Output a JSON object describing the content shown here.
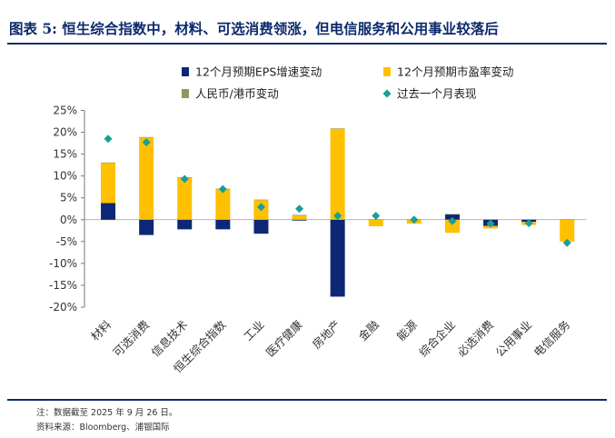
{
  "header": {
    "title": "图表 5: 恒生综合指数中，材料、可选消费领涨，但电信服务和公用事业较落后"
  },
  "footer": {
    "note": "注：数据截至 2025 年 9 月 26 日。",
    "source": "资料来源：Bloomberg、浦银国际"
  },
  "colors": {
    "eps": "#0c2776",
    "pe": "#ffc000",
    "fx": "#8e9a5e",
    "perf": "#1a9e9a",
    "title": "#0c2a6b"
  },
  "chart_data": {
    "type": "bar",
    "stacked": true,
    "categories": [
      "材料",
      "可选消费",
      "信息技术",
      "恒生综合指数",
      "工业",
      "医疗健康",
      "房地产",
      "金融",
      "能源",
      "综合企业",
      "必选消费",
      "公用事业",
      "电信服务"
    ],
    "series": [
      {
        "name": "12个月预期EPS增速变动",
        "type": "bar",
        "values": [
          3.8,
          -3.5,
          -2.2,
          -2.2,
          -3.2,
          -0.2,
          -17.6,
          0.0,
          0.0,
          1.2,
          -1.4,
          -0.5,
          0.0
        ]
      },
      {
        "name": "12个月预期市盈率变动",
        "type": "bar",
        "values": [
          9.2,
          18.8,
          9.6,
          7.0,
          4.5,
          1.0,
          20.8,
          -1.5,
          -0.9,
          -3.0,
          -0.6,
          -0.7,
          -5.0
        ]
      },
      {
        "name": "人民币/港币变动",
        "type": "bar",
        "values": [
          0.1,
          0.1,
          0.1,
          0.1,
          0.1,
          0.1,
          0.1,
          0.1,
          0.1,
          0.1,
          0.1,
          0.1,
          0.1
        ]
      },
      {
        "name": "过去一个月表现",
        "type": "scatter",
        "values": [
          18.5,
          17.7,
          9.3,
          7.0,
          2.9,
          2.5,
          0.9,
          0.9,
          0.0,
          -0.3,
          -0.9,
          -0.8,
          -5.3
        ]
      }
    ],
    "yticks": [
      "25%",
      "20%",
      "15%",
      "10%",
      "5%",
      "0%",
      "-5%",
      "-10%",
      "-15%",
      "-20%"
    ],
    "ylim": [
      -20,
      25
    ],
    "legend_position": "top",
    "grid": false
  }
}
